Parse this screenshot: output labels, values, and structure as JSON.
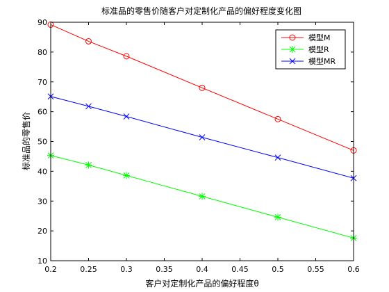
{
  "chart_data": {
    "type": "line",
    "title": "标准品的零售价随客户对定制化产品的偏好程度变化图",
    "xlabel": "客户对定制化产品的偏好程度θ",
    "ylabel": "标准品的零售价",
    "xlim": [
      0.2,
      0.6
    ],
    "ylim": [
      10,
      90
    ],
    "xticks": [
      0.2,
      0.25,
      0.3,
      0.35,
      0.4,
      0.45,
      0.5,
      0.55,
      0.6
    ],
    "xtick_labels": [
      "0.2",
      "0.25",
      "0.3",
      "0.35",
      "0.4",
      "0.45",
      "0.5",
      "0.55",
      "0.6"
    ],
    "yticks": [
      10,
      20,
      30,
      40,
      50,
      60,
      70,
      80,
      90
    ],
    "ytick_labels": [
      "10",
      "20",
      "30",
      "40",
      "50",
      "60",
      "70",
      "80",
      "90"
    ],
    "grid": false,
    "legend_position": "top-right",
    "series": [
      {
        "name": "模型M",
        "color": "#ff0000",
        "marker": "circle",
        "x": [
          0.2,
          0.25,
          0.3,
          0.4,
          0.5,
          0.6
        ],
        "y": [
          89.2,
          83.6,
          78.6,
          68.0,
          57.5,
          47.0
        ]
      },
      {
        "name": "模型R",
        "color": "#00ff00",
        "marker": "asterisk",
        "x": [
          0.2,
          0.25,
          0.3,
          0.4,
          0.5,
          0.6
        ],
        "y": [
          45.3,
          42.1,
          38.6,
          31.6,
          24.6,
          17.6
        ]
      },
      {
        "name": "模型MR",
        "color": "#0000ff",
        "marker": "x",
        "x": [
          0.2,
          0.25,
          0.3,
          0.4,
          0.5,
          0.6
        ],
        "y": [
          65.1,
          61.8,
          58.4,
          51.4,
          44.6,
          37.7
        ]
      }
    ]
  }
}
